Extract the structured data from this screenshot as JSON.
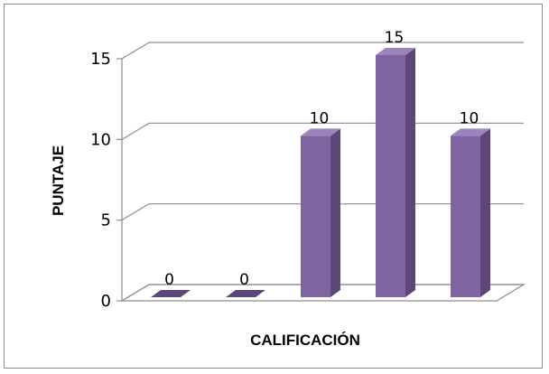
{
  "chart_data": {
    "type": "bar",
    "subtype": "3d-column",
    "categories": [
      "",
      "",
      "",
      "",
      ""
    ],
    "values": [
      0,
      0,
      10,
      15,
      10
    ],
    "data_labels": [
      "0",
      "0",
      "10",
      "15",
      "10"
    ],
    "title": "",
    "xlabel": "CALIFICACIÓN",
    "ylabel": "PUNTAJE",
    "ylim": [
      0,
      15
    ],
    "yticks": [
      0,
      5,
      10,
      15
    ],
    "ytick_labels": [
      "0",
      "5",
      "10",
      "15"
    ],
    "grid": true,
    "legend": "none",
    "colors": {
      "bar_front": "#8064a2",
      "bar_side": "#5c4778",
      "bar_top": "#9b84bb",
      "grid": "#8c8c8c",
      "frame": "#8c8c8c"
    }
  }
}
